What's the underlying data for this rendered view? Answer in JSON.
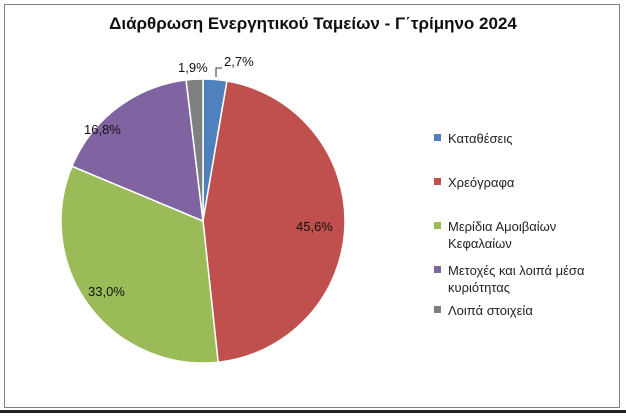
{
  "chart_data": {
    "type": "pie",
    "title": "Διάρθρωση Ενεργητικού Ταμείων - Γ΄τρίμηνο 2024",
    "categories": [
      "Καταθέσεις",
      "Χρεόγραφα",
      "Μερίδια Αμοιβαίων Κεφαλαίων",
      "Μετοχές και λοιπά μέσα κυριότητας",
      "Λοιπά στοιχεία"
    ],
    "values": [
      2.7,
      45.6,
      33.0,
      16.8,
      1.9
    ],
    "value_labels": [
      "2,7%",
      "45,6%",
      "33,0%",
      "16,8%",
      "1,9%"
    ],
    "colors": [
      "#4f81bd",
      "#c0504d",
      "#9bbb59",
      "#8064a2",
      "#7f7f7f"
    ],
    "legend_position": "right"
  }
}
